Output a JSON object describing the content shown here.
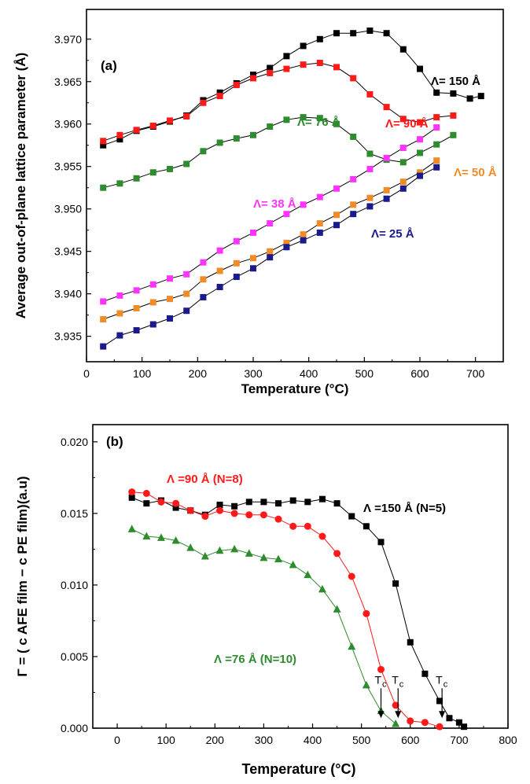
{
  "chart_data": [
    {
      "type": "line",
      "panel_label": "(a)",
      "xlabel": "Temperature (°C)",
      "ylabel": "Average out-of-plane lattice parameter (Å)",
      "xlim": [
        0,
        750
      ],
      "ylim": [
        3.932,
        3.9735
      ],
      "xticks": [
        0,
        100,
        200,
        300,
        400,
        500,
        600,
        700
      ],
      "yticks": [
        3.935,
        3.94,
        3.945,
        3.95,
        3.955,
        3.96,
        3.965,
        3.97
      ],
      "ytick_labels": [
        "3.935",
        "3.940",
        "3.945",
        "3.950",
        "3.955",
        "3.960",
        "3.965",
        "3.970"
      ],
      "grid": false,
      "marker": "square",
      "series": [
        {
          "name": "Λ= 150 Å",
          "color": "#000000",
          "x": [
            30,
            60,
            90,
            120,
            150,
            180,
            210,
            240,
            270,
            300,
            330,
            360,
            390,
            420,
            450,
            480,
            510,
            540,
            570,
            600,
            630,
            660,
            690,
            710
          ],
          "y": [
            3.9575,
            3.9582,
            3.9592,
            3.9597,
            3.9603,
            3.961,
            3.9628,
            3.9637,
            3.9648,
            3.9658,
            3.9666,
            3.968,
            3.9692,
            3.97,
            3.9707,
            3.9707,
            3.971,
            3.9707,
            3.9688,
            3.9665,
            3.9637,
            3.9636,
            3.963,
            3.9633
          ]
        },
        {
          "name": "Λ= 90 Å",
          "color": "#ff1a1a",
          "x": [
            30,
            60,
            90,
            120,
            150,
            180,
            210,
            240,
            270,
            300,
            330,
            360,
            390,
            420,
            450,
            480,
            510,
            540,
            570,
            600,
            630,
            660
          ],
          "y": [
            3.958,
            3.9587,
            3.9593,
            3.9598,
            3.9604,
            3.9609,
            3.9625,
            3.9633,
            3.9646,
            3.9654,
            3.966,
            3.9665,
            3.967,
            3.9672,
            3.9667,
            3.9654,
            3.9635,
            3.962,
            3.9606,
            3.9602,
            3.9608,
            3.961
          ]
        },
        {
          "name": "Λ= 76 Å",
          "color": "#2e8b2e",
          "x": [
            30,
            60,
            90,
            120,
            150,
            180,
            210,
            240,
            270,
            300,
            330,
            360,
            390,
            420,
            450,
            480,
            510,
            540,
            570,
            600,
            630,
            660
          ],
          "y": [
            3.9525,
            3.953,
            3.9536,
            3.9543,
            3.9547,
            3.9553,
            3.9568,
            3.9578,
            3.9583,
            3.9587,
            3.9597,
            3.9605,
            3.9608,
            3.9607,
            3.96,
            3.9585,
            3.9565,
            3.9558,
            3.9555,
            3.9566,
            3.9576,
            3.9587
          ]
        },
        {
          "name": "Λ= 38 Å",
          "color": "#ff33ff",
          "x": [
            30,
            60,
            90,
            120,
            150,
            180,
            210,
            240,
            270,
            300,
            330,
            360,
            390,
            420,
            450,
            480,
            510,
            540,
            570,
            600,
            630
          ],
          "y": [
            3.9391,
            3.9398,
            3.9404,
            3.9411,
            3.9418,
            3.9423,
            3.9437,
            3.9451,
            3.9462,
            3.9472,
            3.9483,
            3.9494,
            3.9505,
            3.9514,
            3.9524,
            3.9535,
            3.9547,
            3.956,
            3.9572,
            3.9582,
            3.9596
          ]
        },
        {
          "name": "Λ= 50 Å",
          "color": "#f08c28",
          "x": [
            30,
            60,
            90,
            120,
            150,
            180,
            210,
            240,
            270,
            300,
            330,
            360,
            390,
            420,
            450,
            480,
            510,
            540,
            570,
            600,
            630
          ],
          "y": [
            3.937,
            3.9377,
            3.9383,
            3.939,
            3.9394,
            3.94,
            3.9417,
            3.9427,
            3.9436,
            3.9442,
            3.945,
            3.946,
            3.947,
            3.9483,
            3.9493,
            3.9505,
            3.9513,
            3.9522,
            3.9532,
            3.9543,
            3.9557
          ]
        },
        {
          "name": "Λ= 25 Å",
          "color": "#1a1a8c",
          "x": [
            30,
            60,
            90,
            120,
            150,
            180,
            210,
            240,
            270,
            300,
            330,
            360,
            390,
            420,
            450,
            480,
            510,
            540,
            570,
            600,
            630
          ],
          "y": [
            3.9338,
            3.9351,
            3.9357,
            3.9364,
            3.9371,
            3.938,
            3.9396,
            3.9408,
            3.942,
            3.943,
            3.9443,
            3.9455,
            3.9463,
            3.9472,
            3.9481,
            3.9494,
            3.9503,
            3.9512,
            3.9524,
            3.9539,
            3.9549
          ]
        }
      ]
    },
    {
      "type": "line",
      "panel_label": "(b)",
      "xlabel": "Temperature (°C)",
      "ylabel": "Γ = ( c AFE film − c PE film)(a.u)",
      "xlim": [
        -50,
        800
      ],
      "ylim": [
        0,
        0.0212
      ],
      "xticks": [
        0,
        100,
        200,
        300,
        400,
        500,
        600,
        700,
        800
      ],
      "yticks": [
        0,
        0.005,
        0.01,
        0.015,
        0.02
      ],
      "ytick_labels": [
        "0.000",
        "0.005",
        "0.010",
        "0.015",
        "0.020"
      ],
      "grid": false,
      "series": [
        {
          "name": "Λ =150 Å (N=5)",
          "color": "#000000",
          "marker": "square",
          "x": [
            30,
            60,
            90,
            120,
            150,
            180,
            210,
            240,
            270,
            300,
            330,
            360,
            390,
            420,
            450,
            480,
            510,
            540,
            570,
            600,
            630,
            660,
            680,
            700,
            710
          ],
          "y": [
            0.0161,
            0.0157,
            0.0159,
            0.0154,
            0.0152,
            0.0149,
            0.0156,
            0.0155,
            0.0158,
            0.0158,
            0.0157,
            0.0159,
            0.0158,
            0.016,
            0.0157,
            0.0148,
            0.0141,
            0.013,
            0.0101,
            0.006,
            0.0038,
            0.0019,
            0.0007,
            0.0004,
            0.0001
          ]
        },
        {
          "name": "Λ =90 Å (N=8)",
          "color": "#ff1a1a",
          "marker": "circle",
          "x": [
            30,
            60,
            90,
            120,
            150,
            180,
            210,
            240,
            270,
            300,
            330,
            360,
            390,
            420,
            450,
            480,
            510,
            540,
            570,
            600,
            630,
            660
          ],
          "y": [
            0.0165,
            0.0164,
            0.0158,
            0.0157,
            0.0152,
            0.0148,
            0.0152,
            0.015,
            0.0149,
            0.0149,
            0.0146,
            0.0141,
            0.0141,
            0.0134,
            0.0122,
            0.0106,
            0.008,
            0.0041,
            0.0016,
            0.0005,
            0.0004,
            0.0001
          ]
        },
        {
          "name": "Λ =76 Å (N=10)",
          "color": "#2e8b2e",
          "marker": "triangle",
          "x": [
            30,
            60,
            90,
            120,
            150,
            180,
            210,
            240,
            270,
            300,
            330,
            360,
            390,
            420,
            450,
            480,
            510,
            540,
            570
          ],
          "y": [
            0.0139,
            0.0134,
            0.0133,
            0.0131,
            0.0126,
            0.012,
            0.0124,
            0.0125,
            0.0122,
            0.0119,
            0.0118,
            0.0114,
            0.0107,
            0.0097,
            0.0083,
            0.0057,
            0.003,
            0.0012,
            0.0003
          ]
        }
      ],
      "annotations": [
        {
          "text": "T",
          "subscript": "c",
          "x_data": 540,
          "arrow_to_y": 0.0007
        },
        {
          "text": "T",
          "subscript": "c",
          "x_data": 575,
          "arrow_to_y": 0.0007
        },
        {
          "text": "T",
          "subscript": "c",
          "x_data": 665,
          "arrow_to_y": 0.0007
        }
      ]
    }
  ]
}
